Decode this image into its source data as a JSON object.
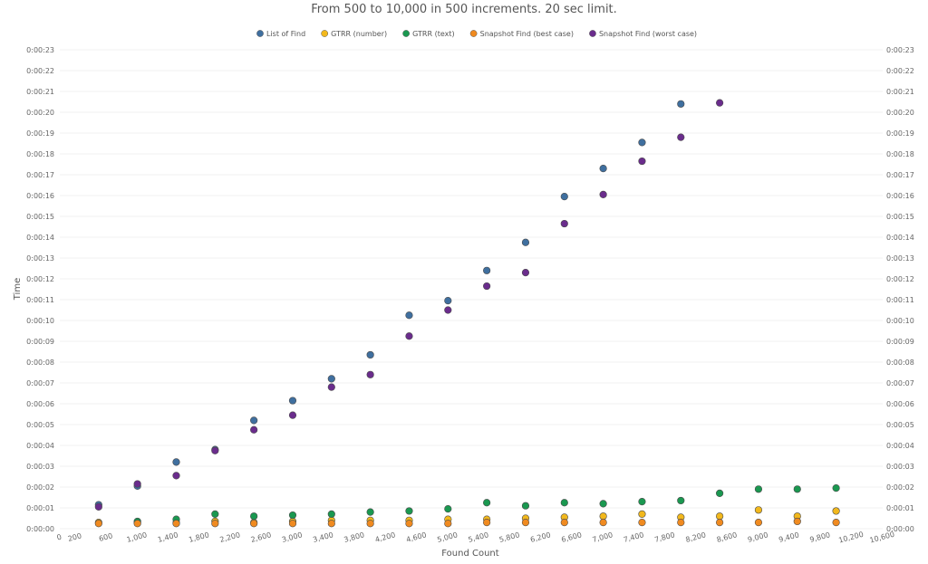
{
  "chart_data": {
    "type": "scatter",
    "title": "From 500 to 10,000 in 500 increments. 20 sec limit.",
    "xlabel": "Found Count",
    "ylabel": "Time",
    "xlim": [
      0,
      10600
    ],
    "ylim": [
      0,
      23
    ],
    "x_ticks": [
      0,
      200,
      600,
      1000,
      1400,
      1800,
      2200,
      2600,
      3000,
      3400,
      3800,
      4200,
      4600,
      5000,
      5400,
      5800,
      6200,
      6600,
      7000,
      7400,
      7800,
      8200,
      8600,
      9000,
      9400,
      9800,
      10200,
      10600
    ],
    "x_tick_labels": [
      "0",
      "200",
      "600",
      "1,000",
      "1,400",
      "1,800",
      "2,200",
      "2,600",
      "3,000",
      "3,400",
      "3,800",
      "4,200",
      "4,600",
      "5,000",
      "5,400",
      "5,800",
      "6,200",
      "6,600",
      "7,000",
      "7,400",
      "7,800",
      "8,200",
      "8,600",
      "9,000",
      "9,400",
      "9,800",
      "10,200",
      "10,600"
    ],
    "y_ticks": [
      0,
      1,
      2,
      3,
      4,
      5,
      6,
      7,
      8,
      9,
      10,
      11,
      12,
      13,
      14,
      15,
      16,
      17,
      18,
      19,
      20,
      21,
      22,
      23
    ],
    "y_tick_labels": [
      "0:00:00",
      "0:00:01",
      "0:00:02",
      "0:00:03",
      "0:00:04",
      "0:00:05",
      "0:00:06",
      "0:00:07",
      "0:00:08",
      "0:00:09",
      "0:00:10",
      "0:00:11",
      "0:00:12",
      "0:00:13",
      "0:00:14",
      "0:00:15",
      "0:00:16",
      "0:00:17",
      "0:00:18",
      "0:00:19",
      "0:00:20",
      "0:00:21",
      "0:00:22",
      "0:00:23"
    ],
    "grid": true,
    "legend_position": "top-center",
    "series": [
      {
        "name": "List of Find",
        "color": "#3f6f9f",
        "points": [
          [
            500,
            1.15
          ],
          [
            1000,
            2.05
          ],
          [
            1500,
            3.2
          ],
          [
            2000,
            3.8
          ],
          [
            2500,
            5.2
          ],
          [
            3000,
            6.15
          ],
          [
            3500,
            7.2
          ],
          [
            4000,
            8.35
          ],
          [
            4500,
            10.25
          ],
          [
            5000,
            10.95
          ],
          [
            5500,
            12.4
          ],
          [
            6000,
            13.75
          ],
          [
            6500,
            15.95
          ],
          [
            7000,
            17.3
          ],
          [
            7500,
            18.55
          ],
          [
            8000,
            20.4
          ]
        ]
      },
      {
        "name": "GTRR (number)",
        "color": "#f2b81c",
        "points": [
          [
            500,
            0.3
          ],
          [
            1000,
            0.3
          ],
          [
            1500,
            0.3
          ],
          [
            2000,
            0.35
          ],
          [
            2500,
            0.3
          ],
          [
            3000,
            0.35
          ],
          [
            3500,
            0.4
          ],
          [
            4000,
            0.4
          ],
          [
            4500,
            0.4
          ],
          [
            5000,
            0.45
          ],
          [
            5500,
            0.45
          ],
          [
            6000,
            0.5
          ],
          [
            6500,
            0.55
          ],
          [
            7000,
            0.6
          ],
          [
            7500,
            0.7
          ],
          [
            8000,
            0.55
          ],
          [
            8500,
            0.6
          ],
          [
            9000,
            0.9
          ],
          [
            9500,
            0.6
          ],
          [
            10000,
            0.85
          ]
        ]
      },
      {
        "name": "GTRR (text)",
        "color": "#1a9850",
        "points": [
          [
            1000,
            0.35
          ],
          [
            1500,
            0.45
          ],
          [
            2000,
            0.7
          ],
          [
            2500,
            0.6
          ],
          [
            3000,
            0.65
          ],
          [
            3500,
            0.7
          ],
          [
            4000,
            0.8
          ],
          [
            4500,
            0.85
          ],
          [
            5000,
            0.95
          ],
          [
            5500,
            1.25
          ],
          [
            6000,
            1.1
          ],
          [
            6500,
            1.25
          ],
          [
            7000,
            1.2
          ],
          [
            7500,
            1.3
          ],
          [
            8000,
            1.35
          ],
          [
            8500,
            1.7
          ],
          [
            9000,
            1.9
          ],
          [
            9500,
            1.9
          ],
          [
            10000,
            1.95
          ]
        ]
      },
      {
        "name": "Snapshot Find (best case)",
        "color": "#f08a1f",
        "points": [
          [
            500,
            0.25
          ],
          [
            1000,
            0.25
          ],
          [
            1500,
            0.25
          ],
          [
            2000,
            0.25
          ],
          [
            2500,
            0.25
          ],
          [
            3000,
            0.25
          ],
          [
            3500,
            0.25
          ],
          [
            4000,
            0.25
          ],
          [
            4500,
            0.25
          ],
          [
            5000,
            0.25
          ],
          [
            5500,
            0.3
          ],
          [
            6000,
            0.3
          ],
          [
            6500,
            0.3
          ],
          [
            7000,
            0.3
          ],
          [
            7500,
            0.3
          ],
          [
            8000,
            0.3
          ],
          [
            8500,
            0.3
          ],
          [
            9000,
            0.3
          ],
          [
            9500,
            0.35
          ],
          [
            10000,
            0.3
          ]
        ]
      },
      {
        "name": "Snapshot Find (worst case)",
        "color": "#6a2c8c",
        "points": [
          [
            500,
            1.05
          ],
          [
            1000,
            2.15
          ],
          [
            1500,
            2.55
          ],
          [
            2000,
            3.75
          ],
          [
            2500,
            4.75
          ],
          [
            3000,
            5.45
          ],
          [
            3500,
            6.8
          ],
          [
            4000,
            7.4
          ],
          [
            4500,
            9.25
          ],
          [
            5000,
            10.5
          ],
          [
            5500,
            11.65
          ],
          [
            6000,
            12.3
          ],
          [
            6500,
            14.65
          ],
          [
            7000,
            16.05
          ],
          [
            7500,
            17.65
          ],
          [
            8000,
            18.8
          ],
          [
            8500,
            20.45
          ]
        ]
      }
    ]
  }
}
